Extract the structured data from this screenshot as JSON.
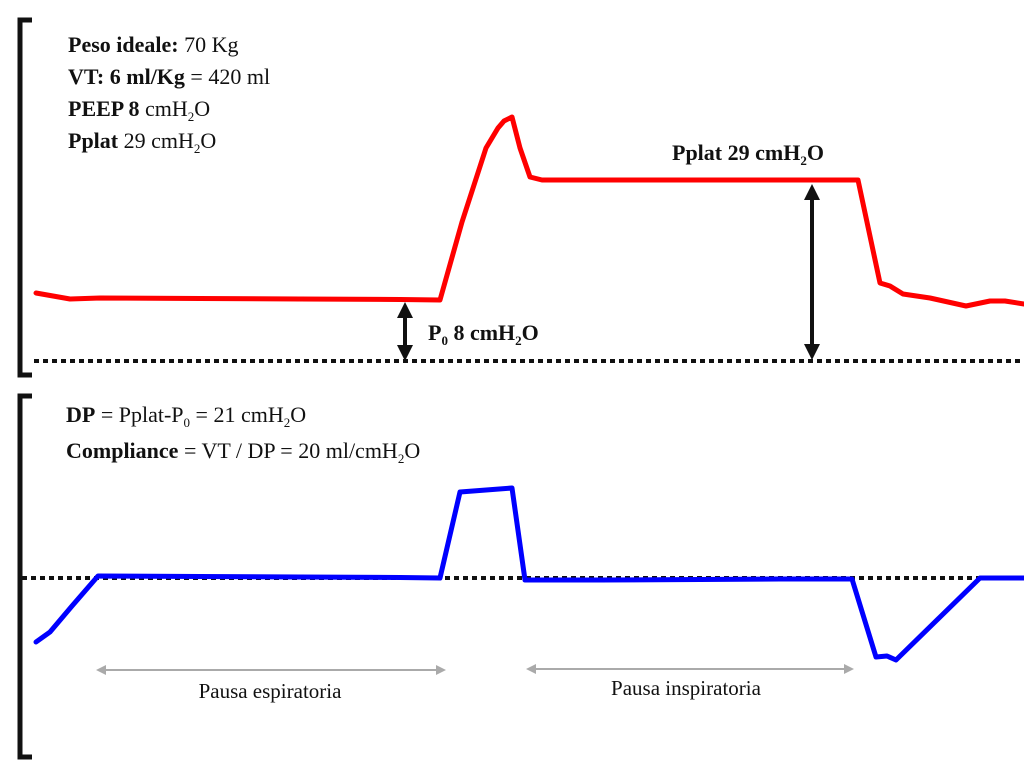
{
  "top_panel": {
    "info": [
      {
        "bold": "Peso ideale:",
        "rest": " 70 Kg"
      },
      {
        "bold": "VT: 6 ml/Kg",
        "rest": " = 420 ml"
      },
      {
        "bold": "PEEP 8",
        "rest": " cmH",
        "sub": "2",
        "tail": "O"
      },
      {
        "bold": "Pplat",
        "rest": " 29 cmH",
        "sub": "2",
        "tail": "O"
      }
    ],
    "pplat_label": {
      "main": "Pplat 29 cmH",
      "sub": "2",
      "tail": "O"
    },
    "p0_label": {
      "p": "P",
      "sub0": "0",
      "main": " 8 cmH",
      "sub2": "2",
      "tail": "O"
    }
  },
  "bottom_panel": {
    "dp_line": {
      "bold": "DP",
      "rest": " = Pplat-P",
      "sub": "0",
      "tail": " =  21 cmH",
      "sub2": "2",
      "tail2": "O"
    },
    "compliance_line": {
      "bold": "Compliance",
      "rest": " = VT / DP = 20 ml/cmH",
      "sub": "2",
      "tail": "O"
    },
    "pause_expiratory": "Pausa espiratoria",
    "pause_inspiratory": "Pausa inspiratoria"
  },
  "colors": {
    "pressure_curve": "#ff0000",
    "flow_curve": "#0000ff",
    "axis": "#111111",
    "pause_arrow": "#aaaaaa"
  }
}
